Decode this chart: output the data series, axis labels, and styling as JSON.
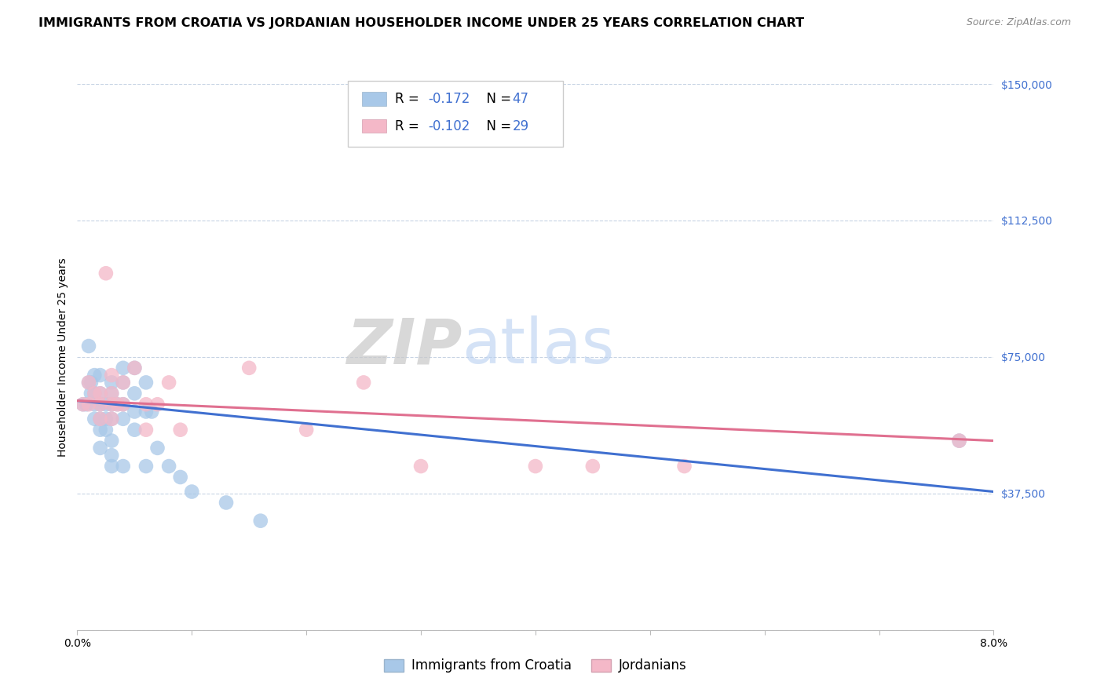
{
  "title": "IMMIGRANTS FROM CROATIA VS JORDANIAN HOUSEHOLDER INCOME UNDER 25 YEARS CORRELATION CHART",
  "source": "Source: ZipAtlas.com",
  "ylabel": "Householder Income Under 25 years",
  "xlim": [
    0.0,
    0.08
  ],
  "ylim": [
    0,
    150000
  ],
  "yticks": [
    0,
    37500,
    75000,
    112500,
    150000
  ],
  "ytick_labels": [
    "",
    "$37,500",
    "$75,000",
    "$112,500",
    "$150,000"
  ],
  "legend_blue_r": "-0.172",
  "legend_blue_n": "47",
  "legend_pink_r": "-0.102",
  "legend_pink_n": "29",
  "legend_label_blue": "Immigrants from Croatia",
  "legend_label_pink": "Jordanians",
  "blue_color": "#a8c8e8",
  "pink_color": "#f4b8c8",
  "blue_line_color": "#4070d0",
  "pink_line_color": "#e07090",
  "accent_color": "#4070d0",
  "watermark_zip": "ZIP",
  "watermark_atlas": "atlas",
  "blue_scatter_x": [
    0.0005,
    0.0008,
    0.001,
    0.001,
    0.0012,
    0.0012,
    0.0015,
    0.0015,
    0.0015,
    0.0015,
    0.002,
    0.002,
    0.002,
    0.002,
    0.002,
    0.002,
    0.0025,
    0.0025,
    0.0025,
    0.003,
    0.003,
    0.003,
    0.003,
    0.003,
    0.003,
    0.003,
    0.0035,
    0.004,
    0.004,
    0.004,
    0.004,
    0.004,
    0.005,
    0.005,
    0.005,
    0.005,
    0.006,
    0.006,
    0.006,
    0.0065,
    0.007,
    0.008,
    0.009,
    0.01,
    0.013,
    0.016,
    0.077
  ],
  "blue_scatter_y": [
    62000,
    62000,
    78000,
    68000,
    68000,
    65000,
    70000,
    65000,
    62000,
    58000,
    70000,
    65000,
    62000,
    58000,
    55000,
    50000,
    62000,
    58000,
    55000,
    68000,
    65000,
    62000,
    58000,
    52000,
    48000,
    45000,
    62000,
    72000,
    68000,
    62000,
    58000,
    45000,
    72000,
    65000,
    60000,
    55000,
    68000,
    60000,
    45000,
    60000,
    50000,
    45000,
    42000,
    38000,
    35000,
    30000,
    52000
  ],
  "pink_scatter_x": [
    0.0005,
    0.001,
    0.001,
    0.0015,
    0.002,
    0.002,
    0.002,
    0.0025,
    0.003,
    0.003,
    0.003,
    0.003,
    0.0035,
    0.004,
    0.004,
    0.005,
    0.006,
    0.006,
    0.007,
    0.008,
    0.009,
    0.015,
    0.02,
    0.025,
    0.03,
    0.04,
    0.045,
    0.053,
    0.077
  ],
  "pink_scatter_y": [
    62000,
    68000,
    62000,
    65000,
    65000,
    62000,
    58000,
    98000,
    70000,
    65000,
    62000,
    58000,
    62000,
    68000,
    62000,
    72000,
    62000,
    55000,
    62000,
    68000,
    55000,
    72000,
    55000,
    68000,
    45000,
    45000,
    45000,
    45000,
    52000
  ],
  "blue_trendline_x": [
    0.0,
    0.08
  ],
  "blue_trendline_y": [
    63000,
    38000
  ],
  "pink_trendline_x": [
    0.0,
    0.08
  ],
  "pink_trendline_y": [
    63000,
    52000
  ],
  "background_color": "#ffffff",
  "grid_color": "#c8d4e4",
  "title_fontsize": 11.5,
  "source_fontsize": 9,
  "axis_label_fontsize": 10,
  "tick_fontsize": 10,
  "legend_fontsize": 12,
  "marker_size": 180,
  "marker_alpha": 0.75
}
